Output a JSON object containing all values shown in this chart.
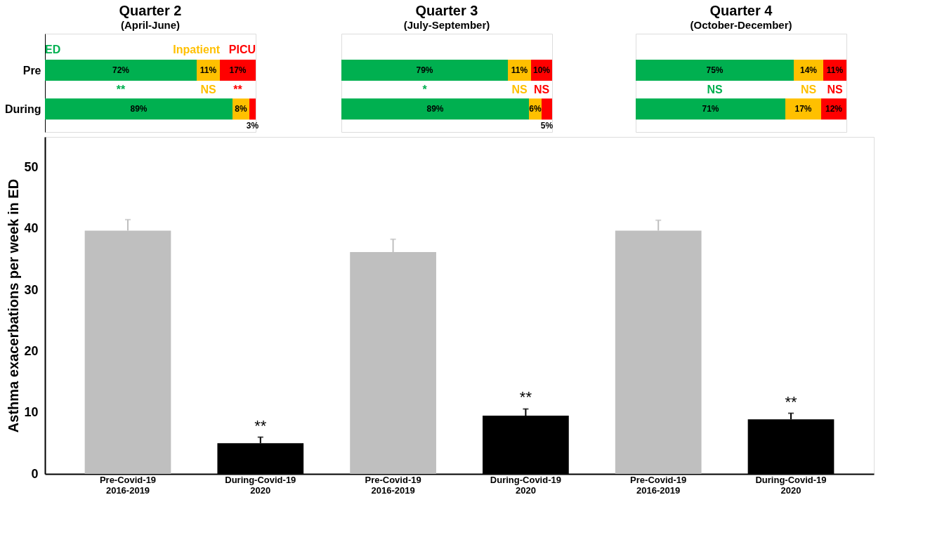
{
  "chart_data": [
    {
      "type": "bar",
      "orientation": "horizontal",
      "stacked": true,
      "title": "Quarter 2",
      "subtitle": "(April-June)",
      "categories": [
        "Pre",
        "During"
      ],
      "tick_labels": "y",
      "legend": "top",
      "series": [
        {
          "name": "ED",
          "color": "#00b050",
          "values": [
            72,
            89
          ],
          "value_labels": [
            "72%",
            "89%"
          ]
        },
        {
          "name": "Inpatient",
          "color": "#ffc000",
          "values": [
            11,
            8
          ],
          "value_labels": [
            "11%",
            "8%"
          ]
        },
        {
          "name": "PICU",
          "color": "#ff0000",
          "values": [
            17,
            3
          ],
          "value_labels": [
            "17%",
            "3%"
          ]
        }
      ],
      "annotations": [
        "**",
        "NS",
        "**"
      ]
    },
    {
      "type": "bar",
      "orientation": "horizontal",
      "stacked": true,
      "title": "Quarter 3",
      "subtitle": "(July-September)",
      "categories": [
        null,
        null
      ],
      "series": [
        {
          "color": "#00b050",
          "values": [
            79,
            89
          ],
          "value_labels": [
            "79%",
            "89%"
          ]
        },
        {
          "color": "#ffc000",
          "values": [
            11,
            6
          ],
          "value_labels": [
            "11%",
            "6%"
          ]
        },
        {
          "color": "#ff0000",
          "values": [
            10,
            5
          ],
          "value_labels": [
            "10%",
            "5%"
          ]
        }
      ],
      "annotations": [
        "*",
        "NS",
        "NS"
      ]
    },
    {
      "type": "bar",
      "orientation": "horizontal",
      "stacked": true,
      "title": "Quarter 4",
      "subtitle": "(October-December)",
      "categories": [
        null,
        null
      ],
      "series": [
        {
          "color": "#00b050",
          "values": [
            75,
            71
          ],
          "value_labels": [
            "75%",
            "71%"
          ]
        },
        {
          "color": "#ffc000",
          "values": [
            14,
            17
          ],
          "value_labels": [
            "14%",
            "17%"
          ]
        },
        {
          "color": "#ff0000",
          "values": [
            11,
            12
          ],
          "value_labels": [
            "11%",
            "12%"
          ]
        }
      ],
      "annotations": [
        "NS",
        "NS",
        "NS"
      ]
    },
    {
      "type": "bar",
      "ylabel": "Asthma exacerbations per week in ED",
      "categories": [
        "Pre-Covid-19\n2016-2019",
        "During-Covid-19\n2020",
        "Pre-Covid-19\n2016-2019",
        "During-Covid-19\n2020",
        "Pre-Covid-19\n2016-2019",
        "During-Covid-19\n2020"
      ],
      "values": [
        39.7,
        5.0,
        36.2,
        9.5,
        39.7,
        8.9
      ],
      "colors": [
        "#bfbfbf",
        "#000000",
        "#bfbfbf",
        "#000000",
        "#bfbfbf",
        "#000000"
      ],
      "errors": [
        [
          39.7,
          41.5
        ],
        [
          5.0,
          6.0
        ],
        [
          36.2,
          38.3
        ],
        [
          9.5,
          10.6
        ],
        [
          39.7,
          41.4
        ],
        [
          8.9,
          9.9
        ]
      ],
      "value_labels": [
        null,
        "**",
        null,
        "**",
        null,
        "**"
      ],
      "ylim": [
        0,
        55
      ],
      "yticks": [
        0,
        10,
        20,
        30,
        40,
        50
      ],
      "grid": false
    }
  ]
}
